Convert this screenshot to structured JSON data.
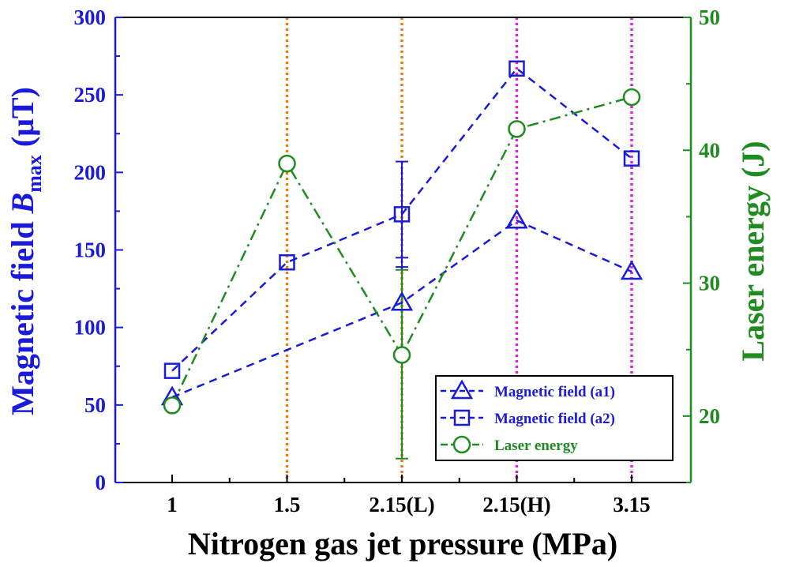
{
  "chart_data": {
    "type": "line",
    "categories": [
      "1",
      "1.5",
      "2.15(L)",
      "2.15(H)",
      "3.15"
    ],
    "xlabel": "Nitrogen gas jet pressure (MPa)",
    "ylabel_left": {
      "prefix": "Magnetic field ",
      "symbol": "B",
      "subscript": "max",
      "suffix": " (μT)"
    },
    "ylabel_right": "Laser energy (J)",
    "ylim_left": [
      0,
      300
    ],
    "yticks_left": [
      "0",
      "50",
      "100",
      "150",
      "200",
      "250",
      "300"
    ],
    "ylim_right": [
      15,
      50
    ],
    "yticks_right": [
      "20",
      "30",
      "40",
      "50"
    ],
    "vertical_markers": [
      {
        "category": "1.5",
        "color": "#f07a10"
      },
      {
        "category": "2.15(L)",
        "color": "#f07a10"
      },
      {
        "category": "2.15(H)",
        "color": "#e020e0"
      },
      {
        "category": "3.15",
        "color": "#e020e0"
      }
    ],
    "series": [
      {
        "name": "Magnetic field (a1)",
        "axis": "left",
        "marker": "triangle",
        "line": "dashed",
        "color": "#1a1adb",
        "points": [
          {
            "x": "1",
            "y": 55
          },
          {
            "x": "2.15(L)",
            "y": 116
          },
          {
            "x": "2.15(H)",
            "y": 169
          },
          {
            "x": "3.15",
            "y": 136
          }
        ],
        "error": {
          "x": "2.15(L)",
          "low": 84,
          "high": 145
        }
      },
      {
        "name": "Magnetic field (a2)",
        "axis": "left",
        "marker": "square",
        "line": "dashed",
        "color": "#1a1adb",
        "points": [
          {
            "x": "1",
            "y": 72
          },
          {
            "x": "1.5",
            "y": 142
          },
          {
            "x": "2.15(L)",
            "y": 173
          },
          {
            "x": "2.15(H)",
            "y": 267
          },
          {
            "x": "3.15",
            "y": 209
          }
        ],
        "error": {
          "x": "2.15(L)",
          "low": 139,
          "high": 207
        }
      },
      {
        "name": "Laser energy",
        "axis": "right",
        "marker": "circle",
        "line": "dashdot",
        "color": "#1e8c1e",
        "points": [
          {
            "x": "1",
            "y": 20.8
          },
          {
            "x": "1.5",
            "y": 39.0
          },
          {
            "x": "2.15(L)",
            "y": 24.6
          },
          {
            "x": "2.15(H)",
            "y": 41.6
          },
          {
            "x": "3.15",
            "y": 44.0
          }
        ],
        "error": {
          "x": "2.15(L)",
          "low": 16.8,
          "high": 31.0
        }
      }
    ],
    "legend": {
      "position": "bottom-right"
    }
  },
  "colors": {
    "left_axis": "#1a1adb",
    "right_axis": "#1e8c1e",
    "frame": "#000000"
  }
}
